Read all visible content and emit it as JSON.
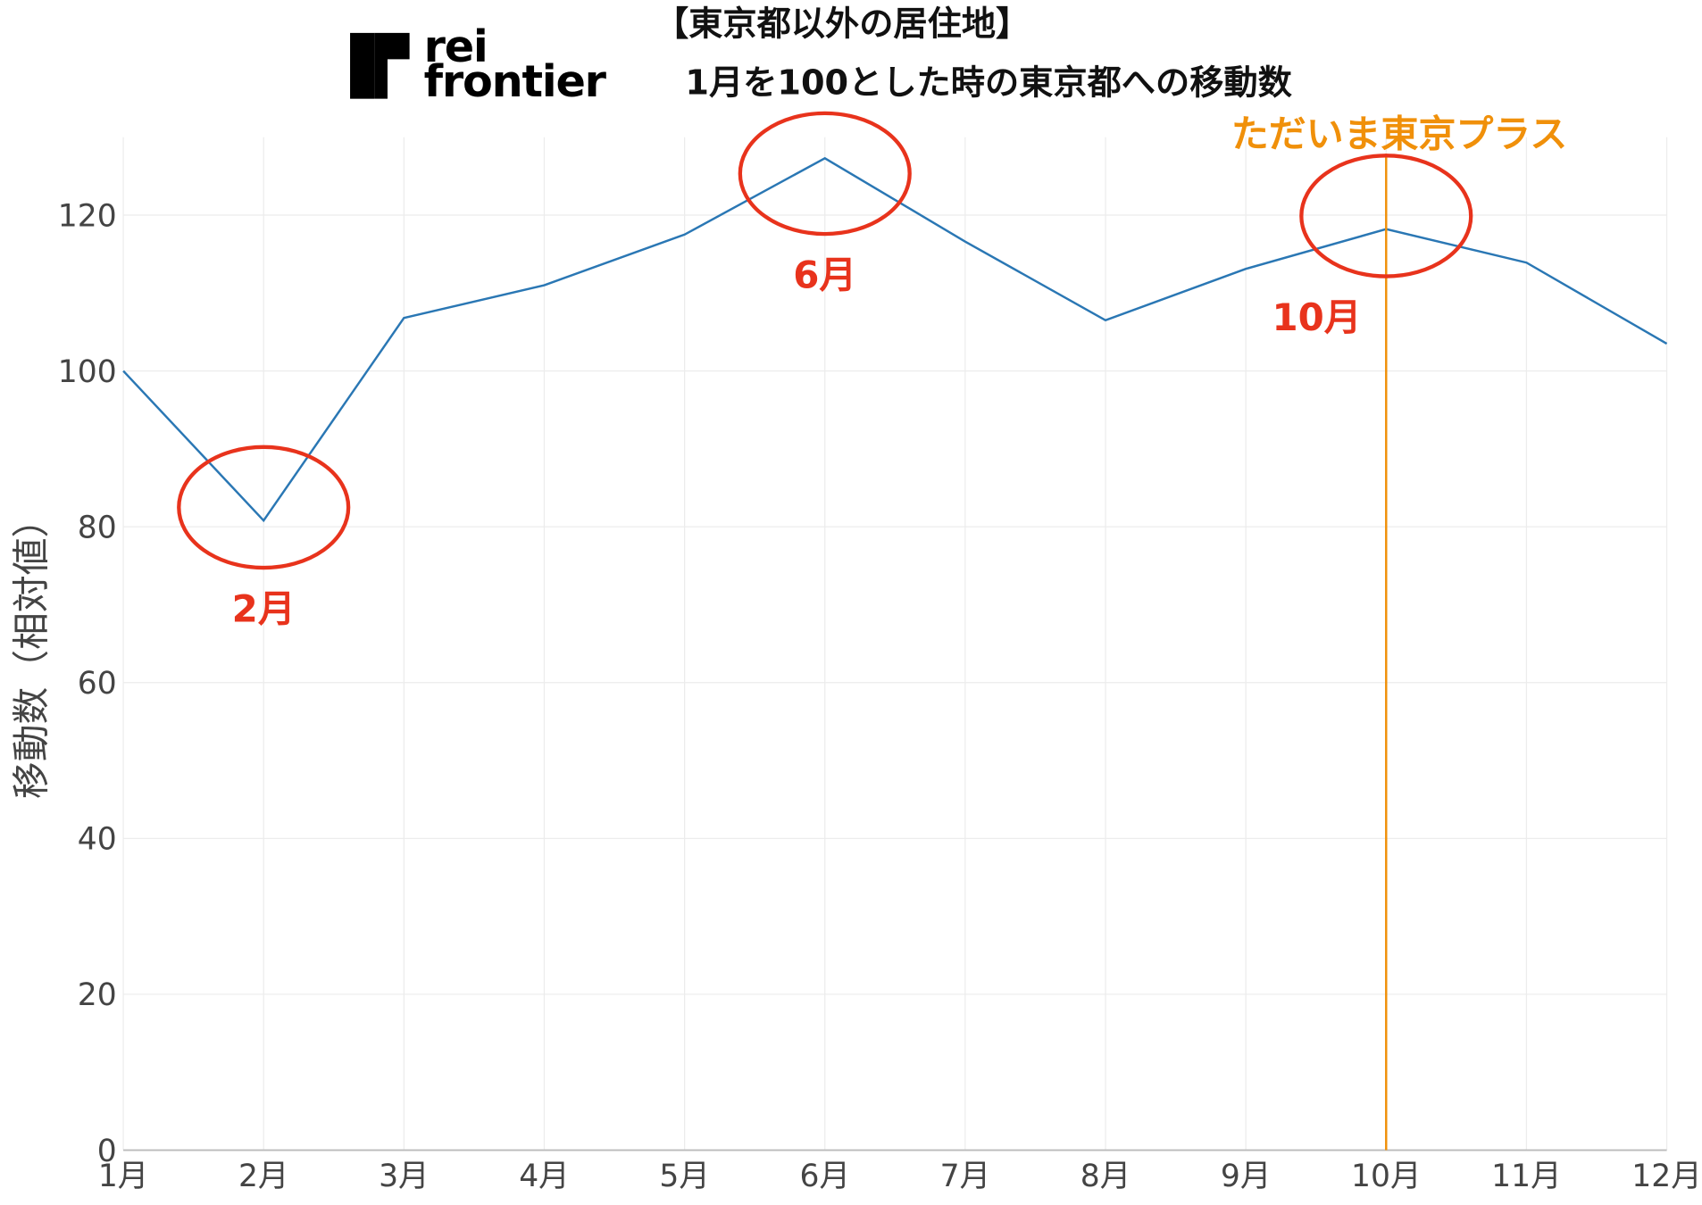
{
  "chart_data": {
    "type": "line",
    "title": [
      "【東京都以外の居住地】",
      "1月を100とした時の東京都への移動数"
    ],
    "logo": [
      "rei",
      "frontier"
    ],
    "y_label": "移動数（相対値）",
    "categories": [
      "1月",
      "2月",
      "3月",
      "4月",
      "5月",
      "6月",
      "7月",
      "8月",
      "9月",
      "10月",
      "11月",
      "12月"
    ],
    "series": [
      {
        "name": "移動数",
        "color": "#2a77b4",
        "values": [
          100,
          80.8,
          106.8,
          111.0,
          117.5,
          127.3,
          116.6,
          106.5,
          113.1,
          118.2,
          113.9,
          103.5
        ]
      }
    ],
    "ylim": [
      0,
      130
    ],
    "yticks": [
      0,
      20,
      40,
      60,
      80,
      100,
      120
    ],
    "grid": true,
    "annotations": [
      {
        "x": "2月",
        "text": "2月",
        "color": "#e8331c"
      },
      {
        "x": "6月",
        "text": "6月",
        "color": "#e8331c"
      },
      {
        "x": "10月",
        "text": "10月",
        "color": "#e8331c"
      }
    ],
    "vline": {
      "x": "10月",
      "label": "ただいま東京プラス",
      "color": "#f0900a"
    }
  }
}
